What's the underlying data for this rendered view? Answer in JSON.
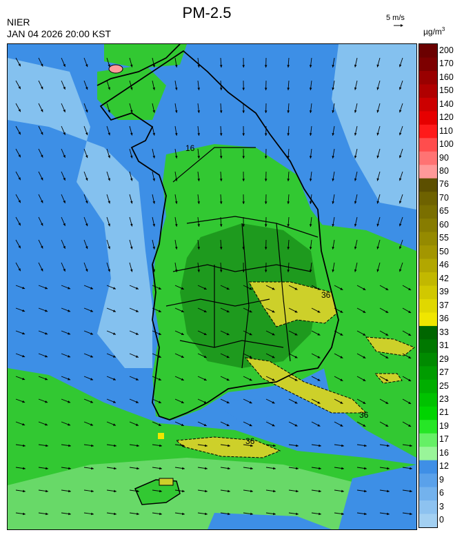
{
  "header": {
    "title": "PM-2.5",
    "agency": "NIER",
    "datetime": "JAN 04 2026 20:00 KST",
    "wind_reference": "5 m/s",
    "unit_base": "µg/m",
    "unit_exp": "3"
  },
  "map": {
    "contour_labels": [
      "16",
      "36",
      "36",
      "36"
    ],
    "colors": {
      "sea_blue": "#3d8fe6",
      "light_blue": "#84c1ef",
      "green": "#32c832",
      "dark_green": "#1e9a1e",
      "light_green": "#7fe07f",
      "yellow": "#cdd02a",
      "pink": "#ff9b9b",
      "coastline": "#000000",
      "vector": "#000000"
    }
  },
  "colorbar": {
    "ticks": [
      "200",
      "170",
      "160",
      "150",
      "140",
      "120",
      "110",
      "100",
      "90",
      "80",
      "76",
      "70",
      "65",
      "60",
      "55",
      "50",
      "46",
      "42",
      "39",
      "37",
      "36",
      "33",
      "31",
      "29",
      "27",
      "25",
      "23",
      "21",
      "19",
      "17",
      "16",
      "12",
      "9",
      "6",
      "3",
      "0"
    ],
    "colors": [
      "#6b0000",
      "#7d0000",
      "#990000",
      "#b00000",
      "#cc0000",
      "#e60000",
      "#ff1a1a",
      "#ff4d4d",
      "#ff7373",
      "#ff9999",
      "#5c4f00",
      "#6e6200",
      "#7a6f00",
      "#877c00",
      "#958a00",
      "#a39600",
      "#b2a700",
      "#c2b800",
      "#d1c800",
      "#e0d800",
      "#f0e600",
      "#006600",
      "#007800",
      "#008a00",
      "#009c00",
      "#00ae00",
      "#00c200",
      "#00d400",
      "#26e626",
      "#66f066",
      "#99f599",
      "#3f8fe6",
      "#5aa1ea",
      "#73b2ed",
      "#8dc2f0",
      "#a3d0f2"
    ]
  }
}
